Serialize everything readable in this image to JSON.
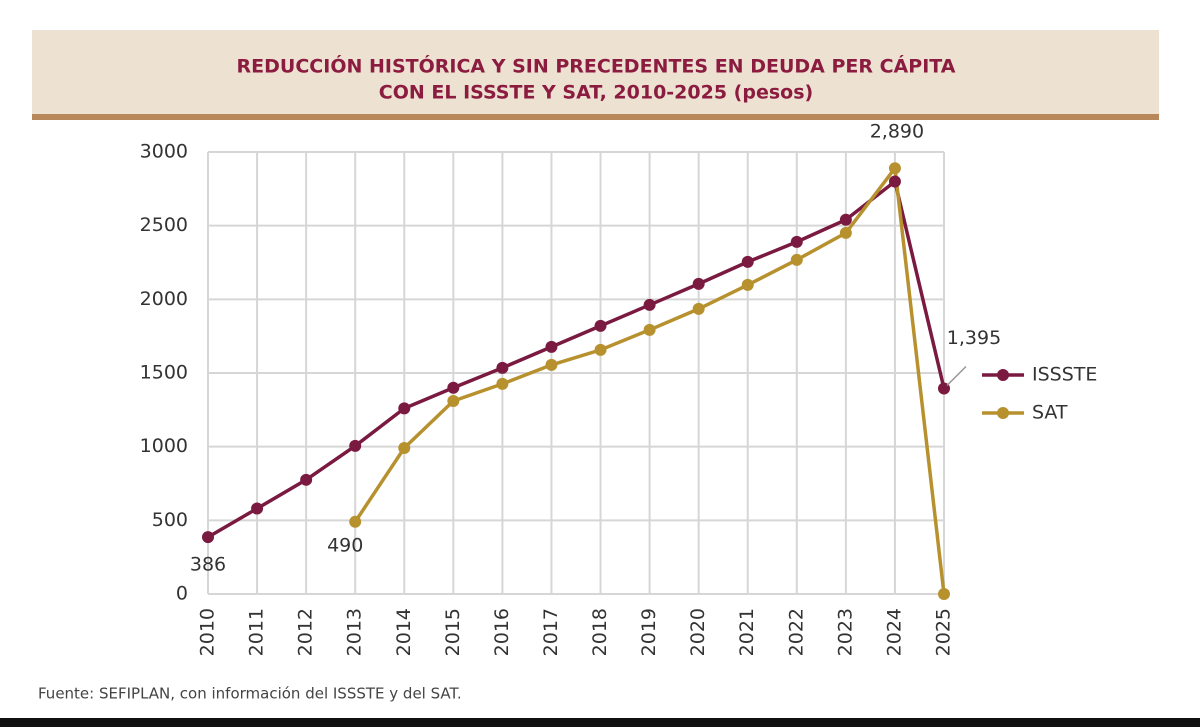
{
  "chart_data": {
    "type": "line",
    "title": [
      "REDUCCIÓN HISTÓRICA Y SIN PRECEDENTES EN DEUDA PER CÁPITA",
      "CON EL ISSSTE Y SAT, 2010-2025 (pesos)"
    ],
    "source": "Fuente: SEFIPLAN, con información del ISSSTE y del SAT.",
    "categories": [
      "2010",
      "2011",
      "2012",
      "2013",
      "2014",
      "2015",
      "2016",
      "2017",
      "2018",
      "2019",
      "2020",
      "2021",
      "2022",
      "2023",
      "2024",
      "2025"
    ],
    "series": [
      {
        "name": "ISSSTE",
        "color": "#7b1a40",
        "values": [
          386,
          580,
          775,
          1005,
          1260,
          1400,
          1535,
          1677,
          1820,
          1962,
          2105,
          2254,
          2390,
          2540,
          2800,
          1395
        ],
        "value_labels": [
          "386",
          null,
          null,
          null,
          null,
          null,
          null,
          null,
          null,
          null,
          null,
          null,
          null,
          null,
          null,
          "1,395"
        ]
      },
      {
        "name": "SAT",
        "color": "#b8912f",
        "values": [
          null,
          null,
          null,
          490,
          991,
          1310,
          1426,
          1555,
          1657,
          1793,
          1935,
          2098,
          2268,
          2451,
          2890,
          0
        ],
        "value_labels": [
          null,
          null,
          null,
          "490",
          null,
          null,
          null,
          null,
          null,
          null,
          null,
          null,
          null,
          null,
          "2,890",
          null
        ]
      }
    ],
    "ylim": [
      0,
      3000
    ],
    "yticks": [
      0,
      500,
      1000,
      1500,
      2000,
      2500,
      3000
    ],
    "grid": true,
    "legend": "right"
  }
}
